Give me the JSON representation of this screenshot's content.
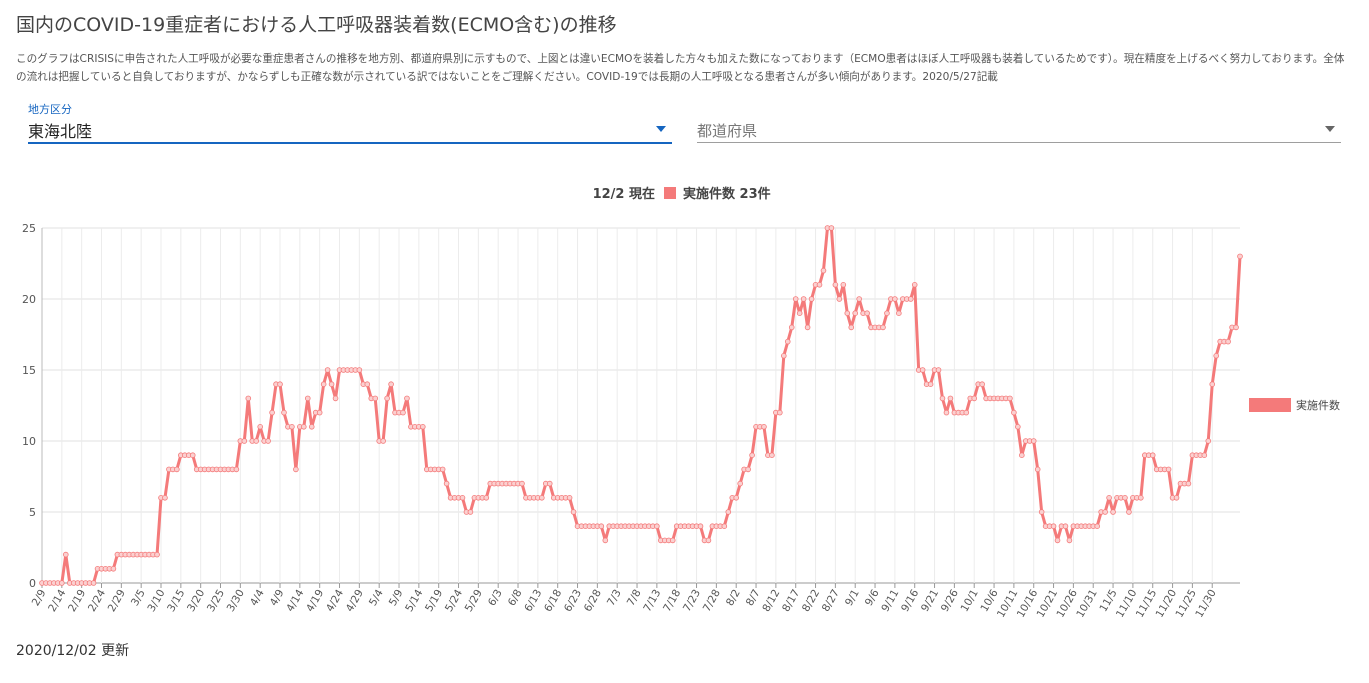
{
  "page": {
    "title": "国内のCOVID-19重症者における人工呼吸器装着数(ECMO含む)の推移",
    "description": "このグラフはCRISISに申告された人工呼吸が必要な重症患者さんの推移を地方別、都道府県別に示すもので、上図とは違いECMOを装着した方々も加えた数になっております（ECMO患者はほぼ人工呼吸器も装着しているためです）。現在精度を上げるべく努力しております。全体の流れは把握していると自負しておりますが、かならずしも正確な数が示されている訳ではないことをご理解ください。COVID-19では長期の人工呼吸となる患者さんが多い傾向があります。2020/5/27記載",
    "updated": "2020/12/02 更新"
  },
  "filters": {
    "region_label": "地方区分",
    "region_value": "東海北陸",
    "prefecture_placeholder": "都道府県"
  },
  "chart_data": {
    "type": "line",
    "summary_date": "12/2 現在",
    "summary_series": "実施件数",
    "summary_value": "23件",
    "legend": "実施件数",
    "legend_position": "right",
    "color": "#f47a7a",
    "ylim": [
      0,
      25
    ],
    "yticks": [
      0,
      5,
      10,
      15,
      20,
      25
    ],
    "grid": true,
    "x_start": "2/9",
    "x_end": "12/2",
    "xtick_labels": [
      "2/9",
      "2/14",
      "2/19",
      "2/24",
      "2/29",
      "3/5",
      "3/10",
      "3/15",
      "3/20",
      "3/25",
      "3/30",
      "4/4",
      "4/9",
      "4/14",
      "4/19",
      "4/24",
      "4/29",
      "5/4",
      "5/9",
      "5/14",
      "5/19",
      "5/24",
      "5/29",
      "6/3",
      "6/8",
      "6/13",
      "6/18",
      "6/23",
      "6/28",
      "7/3",
      "7/8",
      "7/13",
      "7/18",
      "7/23",
      "7/28",
      "8/2",
      "8/7",
      "8/12",
      "8/17",
      "8/22",
      "8/27",
      "9/1",
      "9/6",
      "9/11",
      "9/16",
      "9/21",
      "9/26",
      "10/1",
      "10/6",
      "10/11",
      "10/16",
      "10/21",
      "10/26",
      "10/31",
      "11/5",
      "11/10",
      "11/15",
      "11/20",
      "11/25",
      "11/30"
    ],
    "values": [
      0,
      0,
      0,
      0,
      0,
      0,
      2,
      0,
      0,
      0,
      0,
      0,
      0,
      0,
      1,
      1,
      1,
      1,
      1,
      2,
      2,
      2,
      2,
      2,
      2,
      2,
      2,
      2,
      2,
      2,
      6,
      6,
      8,
      8,
      8,
      9,
      9,
      9,
      9,
      8,
      8,
      8,
      8,
      8,
      8,
      8,
      8,
      8,
      8,
      8,
      10,
      10,
      13,
      10,
      10,
      11,
      10,
      10,
      12,
      14,
      14,
      12,
      11,
      11,
      8,
      11,
      11,
      13,
      11,
      12,
      12,
      14,
      15,
      14,
      13,
      15,
      15,
      15,
      15,
      15,
      15,
      14,
      14,
      13,
      13,
      10,
      10,
      13,
      14,
      12,
      12,
      12,
      13,
      11,
      11,
      11,
      11,
      8,
      8,
      8,
      8,
      8,
      7,
      6,
      6,
      6,
      6,
      5,
      5,
      6,
      6,
      6,
      6,
      7,
      7,
      7,
      7,
      7,
      7,
      7,
      7,
      7,
      6,
      6,
      6,
      6,
      6,
      7,
      7,
      6,
      6,
      6,
      6,
      6,
      5,
      4,
      4,
      4,
      4,
      4,
      4,
      4,
      3,
      4,
      4,
      4,
      4,
      4,
      4,
      4,
      4,
      4,
      4,
      4,
      4,
      4,
      3,
      3,
      3,
      3,
      4,
      4,
      4,
      4,
      4,
      4,
      4,
      3,
      3,
      4,
      4,
      4,
      4,
      5,
      6,
      6,
      7,
      8,
      8,
      9,
      11,
      11,
      11,
      9,
      9,
      12,
      12,
      16,
      17,
      18,
      20,
      19,
      20,
      18,
      20,
      21,
      21,
      22,
      25,
      25,
      21,
      20,
      21,
      19,
      18,
      19,
      20,
      19,
      19,
      18,
      18,
      18,
      18,
      19,
      20,
      20,
      19,
      20,
      20,
      20,
      21,
      15,
      15,
      14,
      14,
      15,
      15,
      13,
      12,
      13,
      12,
      12,
      12,
      12,
      13,
      13,
      14,
      14,
      13,
      13,
      13,
      13,
      13,
      13,
      13,
      12,
      11,
      9,
      10,
      10,
      10,
      8,
      5,
      4,
      4,
      4,
      3,
      4,
      4,
      3,
      4,
      4,
      4,
      4,
      4,
      4,
      4,
      5,
      5,
      6,
      5,
      6,
      6,
      6,
      5,
      6,
      6,
      6,
      9,
      9,
      9,
      8,
      8,
      8,
      8,
      6,
      6,
      7,
      7,
      7,
      9,
      9,
      9,
      9,
      10,
      14,
      16,
      17,
      17,
      17,
      18,
      18,
      23
    ]
  }
}
